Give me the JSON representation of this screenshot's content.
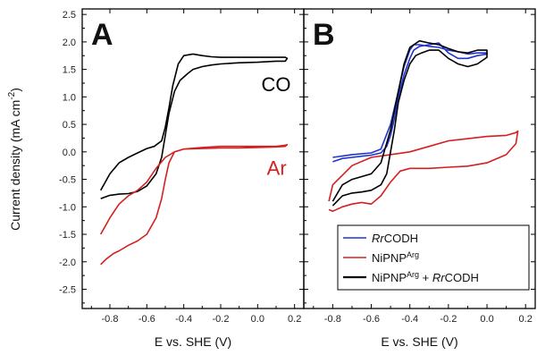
{
  "chart_data": [
    {
      "type": "line",
      "panel_label": "A",
      "xlabel": "E vs. SHE (V)",
      "ylabel": "Current density (mA cm",
      "ylabel_sup": "-2",
      "ylabel_close": ")",
      "xlim": [
        -0.95,
        0.25
      ],
      "ylim": [
        -2.85,
        2.6
      ],
      "xticks": [
        -0.8,
        -0.6,
        -0.4,
        -0.2,
        0.0,
        0.2
      ],
      "xtick_labels": [
        "-0.8",
        "-0.6",
        "-0.4",
        "-0.2",
        "0.0",
        "0.2"
      ],
      "yticks": [
        -2.5,
        -2.0,
        -1.5,
        -1.0,
        -0.5,
        0.0,
        0.5,
        1.0,
        1.5,
        2.0,
        2.5
      ],
      "ytick_labels": [
        "-2.5",
        "-2.0",
        "-1.5",
        "-1.0",
        "-0.5",
        "0.0",
        "0.5",
        "1.0",
        "1.5",
        "2.0",
        "2.5"
      ],
      "annotations": [
        {
          "text": "CO",
          "x": 0.02,
          "y": 1.1,
          "color": "#000000"
        },
        {
          "text": "Ar",
          "x": 0.05,
          "y": -0.42,
          "color": "#d42020"
        }
      ],
      "series": [
        {
          "color": "#000000",
          "x": [
            -0.85,
            -0.8,
            -0.75,
            -0.7,
            -0.65,
            -0.6,
            -0.55,
            -0.52,
            -0.5,
            -0.48,
            -0.45,
            -0.42,
            -0.38,
            -0.35,
            -0.3,
            -0.25,
            -0.2,
            -0.1,
            0.0,
            0.1,
            0.15,
            0.16,
            0.15,
            0.1,
            0.0,
            -0.1,
            -0.2,
            -0.25,
            -0.3,
            -0.35,
            -0.4,
            -0.43,
            -0.46,
            -0.48,
            -0.5,
            -0.52,
            -0.56,
            -0.6,
            -0.65,
            -0.7,
            -0.75,
            -0.8,
            -0.85
          ],
          "y": [
            -0.85,
            -0.79,
            -0.77,
            -0.76,
            -0.72,
            -0.62,
            -0.4,
            -0.1,
            0.3,
            0.7,
            1.1,
            1.3,
            1.42,
            1.5,
            1.55,
            1.58,
            1.6,
            1.62,
            1.63,
            1.65,
            1.65,
            1.7,
            1.72,
            1.72,
            1.72,
            1.72,
            1.72,
            1.73,
            1.75,
            1.78,
            1.75,
            1.6,
            1.2,
            0.8,
            0.45,
            0.2,
            0.1,
            0.06,
            -0.02,
            -0.1,
            -0.2,
            -0.4,
            -0.7
          ]
        },
        {
          "color": "#d42020",
          "x": [
            -0.85,
            -0.82,
            -0.78,
            -0.75,
            -0.7,
            -0.65,
            -0.6,
            -0.55,
            -0.52,
            -0.5,
            -0.48,
            -0.45,
            -0.4,
            -0.3,
            -0.2,
            -0.1,
            0.0,
            0.1,
            0.15,
            0.16,
            0.15,
            0.1,
            0.0,
            -0.1,
            -0.2,
            -0.3,
            -0.4,
            -0.45,
            -0.5,
            -0.55,
            -0.6,
            -0.65,
            -0.7,
            -0.75,
            -0.8,
            -0.85
          ],
          "y": [
            -2.05,
            -1.95,
            -1.85,
            -1.8,
            -1.7,
            -1.62,
            -1.5,
            -1.2,
            -0.85,
            -0.5,
            -0.2,
            0.0,
            0.05,
            0.06,
            0.07,
            0.07,
            0.08,
            0.09,
            0.1,
            0.13,
            0.12,
            0.1,
            0.1,
            0.1,
            0.1,
            0.08,
            0.05,
            0.0,
            -0.1,
            -0.3,
            -0.55,
            -0.7,
            -0.8,
            -0.95,
            -1.2,
            -1.5
          ]
        }
      ]
    },
    {
      "type": "line",
      "panel_label": "B",
      "xlabel": "E vs. SHE (V)",
      "xlim": [
        -0.95,
        0.25
      ],
      "ylim": [
        -2.85,
        2.6
      ],
      "xticks": [
        -0.8,
        -0.6,
        -0.4,
        -0.2,
        0.0,
        0.2
      ],
      "xtick_labels": [
        "-0.8",
        "-0.6",
        "-0.4",
        "-0.2",
        "0.0",
        "0.2"
      ],
      "legend_position": "bottom-right",
      "series": [
        {
          "name": "Rr",
          "name_rest": "CODH",
          "color": "#2233cc",
          "x": [
            -0.8,
            -0.75,
            -0.7,
            -0.65,
            -0.6,
            -0.55,
            -0.52,
            -0.5,
            -0.48,
            -0.46,
            -0.43,
            -0.4,
            -0.38,
            -0.35,
            -0.3,
            -0.25,
            -0.2,
            -0.15,
            -0.1,
            -0.05,
            0.0,
            0.0,
            -0.05,
            -0.1,
            -0.15,
            -0.2,
            -0.25,
            -0.3,
            -0.35,
            -0.38,
            -0.4,
            -0.43,
            -0.46,
            -0.5,
            -0.55,
            -0.6,
            -0.7,
            -0.8
          ],
          "y": [
            -0.18,
            -0.12,
            -0.1,
            -0.08,
            -0.06,
            -0.02,
            0.1,
            0.3,
            0.6,
            1.0,
            1.4,
            1.7,
            1.85,
            1.92,
            1.95,
            1.98,
            1.8,
            1.7,
            1.7,
            1.75,
            1.78,
            1.8,
            1.8,
            1.78,
            1.82,
            1.85,
            1.9,
            1.92,
            1.95,
            1.95,
            1.85,
            1.55,
            1.1,
            0.5,
            0.05,
            -0.02,
            -0.05,
            -0.1
          ]
        },
        {
          "name": "NiPNP",
          "name_sup": "Arg",
          "color": "#d42020",
          "x": [
            -0.82,
            -0.8,
            -0.75,
            -0.7,
            -0.65,
            -0.6,
            -0.55,
            -0.5,
            -0.45,
            -0.4,
            -0.3,
            -0.2,
            -0.1,
            0.0,
            0.1,
            0.15,
            0.16,
            0.15,
            0.1,
            0.0,
            -0.1,
            -0.2,
            -0.3,
            -0.4,
            -0.5,
            -0.6,
            -0.7,
            -0.8,
            -0.82
          ],
          "y": [
            -1.05,
            -1.08,
            -1.0,
            -0.95,
            -0.92,
            -0.95,
            -0.8,
            -0.55,
            -0.35,
            -0.3,
            -0.3,
            -0.28,
            -0.26,
            -0.2,
            -0.05,
            0.15,
            0.38,
            0.35,
            0.3,
            0.28,
            0.24,
            0.2,
            0.1,
            0.0,
            -0.05,
            -0.1,
            -0.25,
            -0.6,
            -0.9
          ]
        },
        {
          "name": "NiPNP",
          "name_sup": "Arg",
          "name_mid": " + ",
          "name_italic": "Rr",
          "name_rest": "CODH",
          "color": "#000000",
          "x": [
            -0.8,
            -0.75,
            -0.7,
            -0.65,
            -0.6,
            -0.55,
            -0.52,
            -0.5,
            -0.48,
            -0.46,
            -0.43,
            -0.4,
            -0.37,
            -0.34,
            -0.3,
            -0.25,
            -0.2,
            -0.15,
            -0.1,
            -0.05,
            0.0,
            0.0,
            -0.05,
            -0.1,
            -0.15,
            -0.2,
            -0.25,
            -0.3,
            -0.35,
            -0.4,
            -0.43,
            -0.46,
            -0.5,
            -0.55,
            -0.6,
            -0.65,
            -0.7,
            -0.75,
            -0.8
          ],
          "y": [
            -0.98,
            -0.8,
            -0.75,
            -0.73,
            -0.7,
            -0.6,
            -0.4,
            0.0,
            0.4,
            0.9,
            1.3,
            1.6,
            1.75,
            1.8,
            1.85,
            1.85,
            1.7,
            1.6,
            1.55,
            1.6,
            1.72,
            1.85,
            1.85,
            1.8,
            1.82,
            1.88,
            1.95,
            1.98,
            2.02,
            1.9,
            1.6,
            1.1,
            0.4,
            -0.2,
            -0.4,
            -0.45,
            -0.5,
            -0.6,
            -0.9
          ]
        }
      ]
    }
  ]
}
